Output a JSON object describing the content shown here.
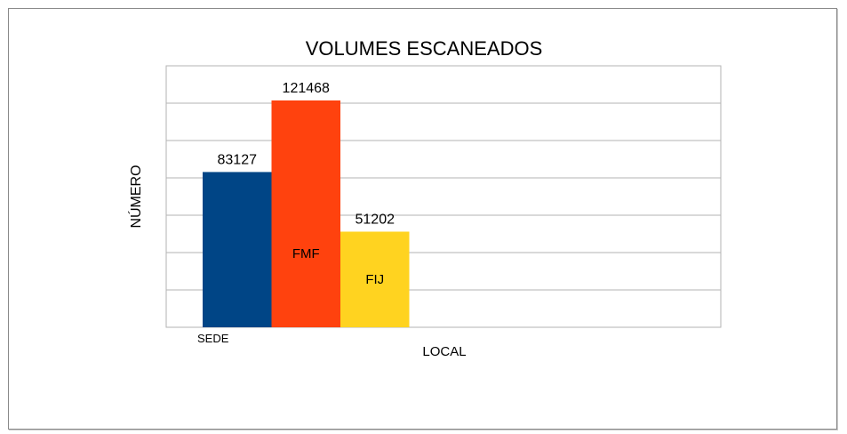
{
  "chart_data": {
    "type": "bar",
    "title": "VOLUMES ESCANEADOS",
    "xlabel": "LOCAL",
    "ylabel": "NÚMERO",
    "categories": [
      "SEDE",
      "FMF",
      "FIJ"
    ],
    "values": [
      83127,
      121468,
      51202
    ],
    "colors": [
      "#004586",
      "#ff420e",
      "#ffd320"
    ],
    "ylim": [
      0,
      140000
    ],
    "grid": true,
    "legend": "none"
  }
}
